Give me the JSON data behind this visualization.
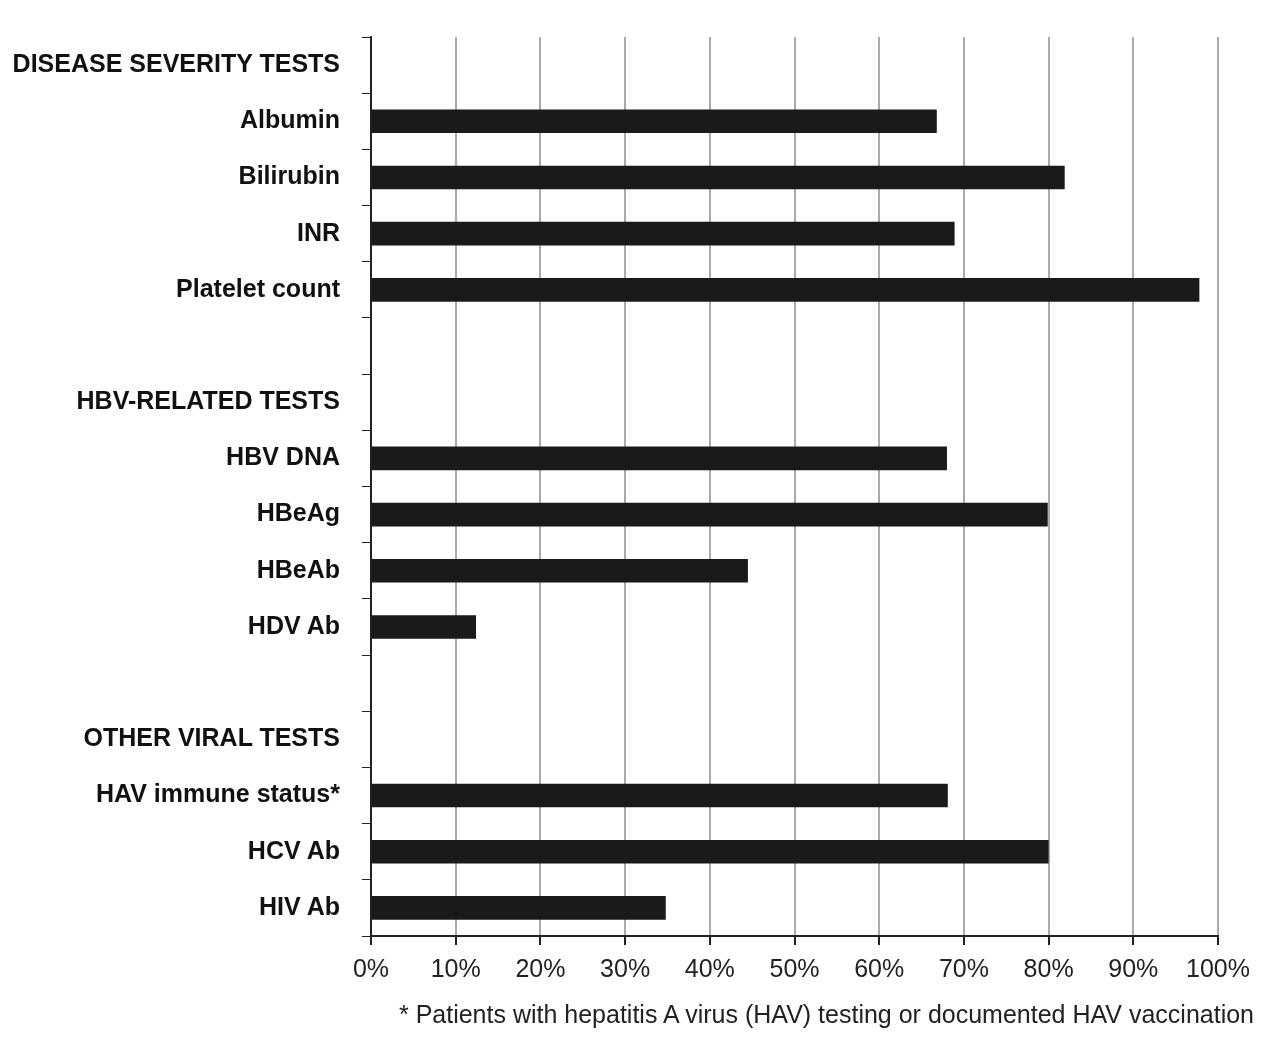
{
  "chart_data": {
    "type": "bar",
    "orientation": "horizontal",
    "categories": [
      "DISEASE SEVERITY TESTS",
      "Albumin",
      "Bilirubin",
      "INR",
      "Platelet count",
      null,
      "HBV-RELATED TESTS",
      "HBV DNA",
      "HBeAg",
      "HBeAb",
      "HDV Ab",
      null,
      "OTHER VIRAL TESTS",
      "HAV immune status*",
      "HCV Ab",
      "HIV Ab"
    ],
    "values": [
      null,
      66.8,
      81.9,
      68.9,
      97.8,
      null,
      null,
      68.0,
      79.9,
      44.5,
      12.4,
      null,
      null,
      68.1,
      80.0,
      34.8
    ],
    "color": "#1a1a1a",
    "xlim": [
      0,
      100
    ],
    "xticks": [
      {
        "value": 0,
        "label": "0%"
      },
      {
        "value": 10,
        "label": "10%"
      },
      {
        "value": 20,
        "label": "20%"
      },
      {
        "value": 30,
        "label": "30%"
      },
      {
        "value": 40,
        "label": "40%"
      },
      {
        "value": 50,
        "label": "50%"
      },
      {
        "value": 60,
        "label": "60%"
      },
      {
        "value": 70,
        "label": "70%"
      },
      {
        "value": 80,
        "label": "80%"
      },
      {
        "value": 90,
        "label": "90%"
      },
      {
        "value": 100,
        "label": "100%"
      }
    ],
    "grid": "x",
    "legend": false,
    "annotations": [
      "* Patients with hepatitis A virus (HAV) testing or documented HAV vaccination"
    ]
  }
}
